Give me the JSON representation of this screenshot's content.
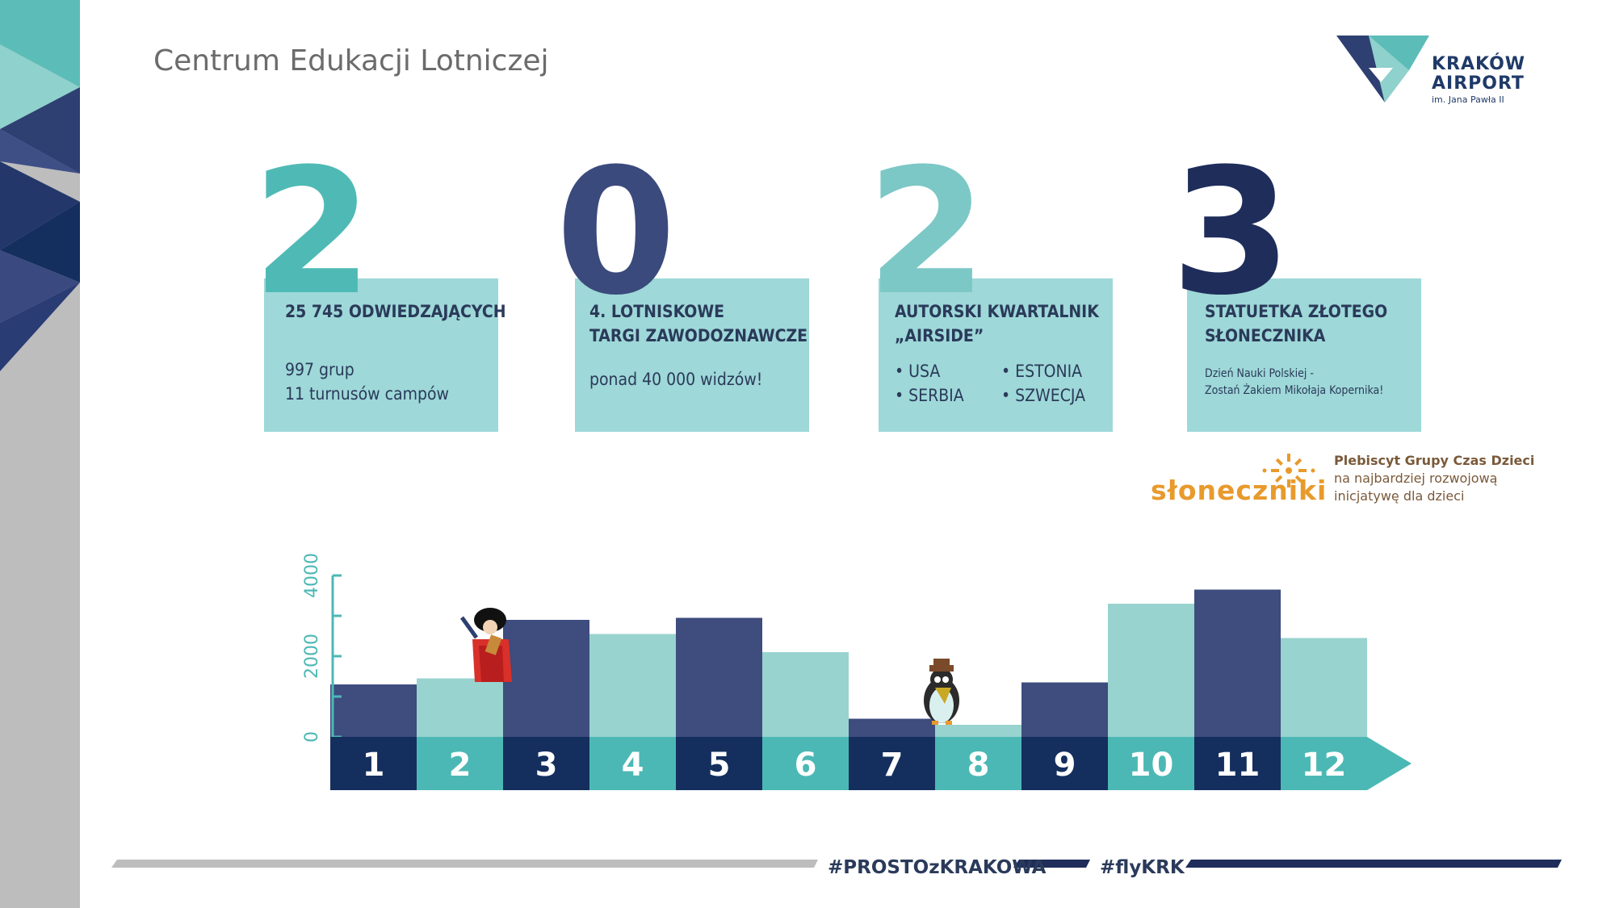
{
  "header": {
    "title": "Centrum Edukacji Lotniczej",
    "logo_line1": "KRAKÓW",
    "logo_line2": "AIRPORT",
    "logo_line3": "im. Jana Pawła II"
  },
  "year_digits": [
    {
      "digit": "2",
      "color": "#4fbab5"
    },
    {
      "digit": "0",
      "color": "#3b4a7c"
    },
    {
      "digit": "2",
      "color": "#7cc8c6"
    },
    {
      "digit": "3",
      "color": "#1e2d5a"
    }
  ],
  "cards": [
    {
      "heading1": "25 745 ODWIEDZAJĄCYCH",
      "heading2": "",
      "line1": "997 grup",
      "line2": "11 turnusów campów"
    },
    {
      "heading1": "4. LOTNISKOWE",
      "heading2": "TARGI ZAWODOZNAWCZE",
      "line1": "ponad 40 000 widzów!"
    },
    {
      "heading1": "AUTORSKI KWARTALNIK",
      "heading2": "„AIRSIDE”",
      "bullets": [
        "• USA",
        "• ESTONIA",
        "• SERBIA",
        "• SZWECJA"
      ]
    },
    {
      "heading1": "STATUETKA ZŁOTEGO",
      "heading2": "SŁONECZNIKA",
      "small1": "Dzień Nauki Polskiej -",
      "small2": "Zostań Żakiem Mikołaja Kopernika!"
    }
  ],
  "award": {
    "name": "słoneczniki",
    "line1": "Plebiscyt Grupy Czas Dzieci",
    "line2": "na najbardziej rozwojową",
    "line3": "inicjatywę dla dzieci"
  },
  "chart_data": {
    "type": "bar",
    "categories": [
      "1",
      "2",
      "3",
      "4",
      "5",
      "6",
      "7",
      "8",
      "9",
      "10",
      "11",
      "12"
    ],
    "values": [
      1300,
      1450,
      2900,
      2550,
      2950,
      2100,
      450,
      300,
      1350,
      3300,
      3650,
      2450
    ],
    "ylim": [
      0,
      4000
    ],
    "y_ticks": [
      "0",
      "2000",
      "4000"
    ],
    "grid": false,
    "legend": "none",
    "colors": [
      "#3e4c7e",
      "#98d3cf"
    ],
    "axis_label_colors": [
      "#142f5e",
      "#4cb8b5"
    ]
  },
  "footer": {
    "tag1": "#PROSTOzKRAKOWA",
    "tag2": "#flyKRK"
  }
}
